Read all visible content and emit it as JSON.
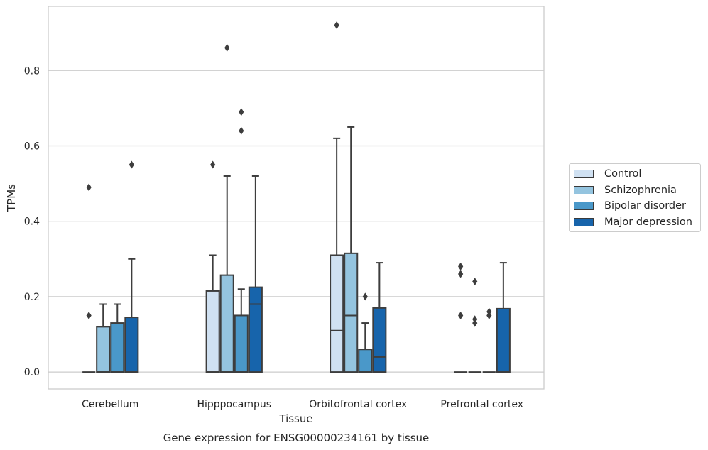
{
  "chart_data": {
    "type": "box",
    "title": "Gene expression for ENSG00000234161 by tissue",
    "xlabel": "Tissue",
    "ylabel": "TPMs",
    "ylim": [
      -0.045,
      0.97
    ],
    "yticks": [
      0.0,
      0.2,
      0.4,
      0.6,
      0.8
    ],
    "ytick_labels": [
      "0.0",
      "0.2",
      "0.4",
      "0.6",
      "0.8"
    ],
    "categories": [
      "Cerebellum",
      "Hipppocampus",
      "Orbitofrontal cortex",
      "Prefrontal cortex"
    ],
    "grid": "horizontal",
    "legend_position": "right",
    "series": [
      {
        "name": "Control",
        "color": "#d0e1f2",
        "boxes": [
          {
            "q1": 0.0,
            "median": 0.0,
            "q3": 0.0,
            "whisker_low": 0.0,
            "whisker_high": 0.0,
            "outliers": [
              0.15,
              0.49
            ]
          },
          {
            "q1": 0.0,
            "median": 0.0,
            "q3": 0.215,
            "whisker_low": 0.0,
            "whisker_high": 0.31,
            "outliers": [
              0.55
            ]
          },
          {
            "q1": 0.0,
            "median": 0.11,
            "q3": 0.31,
            "whisker_low": 0.0,
            "whisker_high": 0.62,
            "outliers": [
              0.92
            ]
          },
          {
            "q1": 0.0,
            "median": 0.0,
            "q3": 0.0,
            "whisker_low": 0.0,
            "whisker_high": 0.0,
            "outliers": [
              0.15,
              0.26,
              0.28
            ]
          }
        ]
      },
      {
        "name": "Schizophrenia",
        "color": "#94c4df",
        "boxes": [
          {
            "q1": 0.0,
            "median": 0.0,
            "q3": 0.12,
            "whisker_low": 0.0,
            "whisker_high": 0.18,
            "outliers": []
          },
          {
            "q1": 0.0,
            "median": 0.0,
            "q3": 0.257,
            "whisker_low": 0.0,
            "whisker_high": 0.52,
            "outliers": [
              0.86
            ]
          },
          {
            "q1": 0.0,
            "median": 0.15,
            "q3": 0.315,
            "whisker_low": 0.0,
            "whisker_high": 0.65,
            "outliers": []
          },
          {
            "q1": 0.0,
            "median": 0.0,
            "q3": 0.0,
            "whisker_low": 0.0,
            "whisker_high": 0.0,
            "outliers": [
              0.13,
              0.14,
              0.24
            ]
          }
        ]
      },
      {
        "name": "Bipolar disorder",
        "color": "#4a98c9",
        "boxes": [
          {
            "q1": 0.0,
            "median": 0.0,
            "q3": 0.13,
            "whisker_low": 0.0,
            "whisker_high": 0.18,
            "outliers": []
          },
          {
            "q1": 0.0,
            "median": 0.0,
            "q3": 0.15,
            "whisker_low": 0.0,
            "whisker_high": 0.22,
            "outliers": [
              0.64,
              0.69
            ]
          },
          {
            "q1": 0.0,
            "median": 0.0,
            "q3": 0.06,
            "whisker_low": 0.0,
            "whisker_high": 0.13,
            "outliers": [
              0.2
            ]
          },
          {
            "q1": 0.0,
            "median": 0.0,
            "q3": 0.0,
            "whisker_low": 0.0,
            "whisker_high": 0.0,
            "outliers": [
              0.15,
              0.16
            ]
          }
        ]
      },
      {
        "name": "Major depression",
        "color": "#1764ab",
        "boxes": [
          {
            "q1": 0.0,
            "median": 0.0,
            "q3": 0.145,
            "whisker_low": 0.0,
            "whisker_high": 0.3,
            "outliers": [
              0.55
            ]
          },
          {
            "q1": 0.0,
            "median": 0.18,
            "q3": 0.225,
            "whisker_low": 0.0,
            "whisker_high": 0.52,
            "outliers": []
          },
          {
            "q1": 0.0,
            "median": 0.04,
            "q3": 0.17,
            "whisker_low": 0.0,
            "whisker_high": 0.29,
            "outliers": []
          },
          {
            "q1": 0.0,
            "median": 0.0,
            "q3": 0.168,
            "whisker_low": 0.0,
            "whisker_high": 0.29,
            "outliers": []
          }
        ]
      }
    ]
  }
}
